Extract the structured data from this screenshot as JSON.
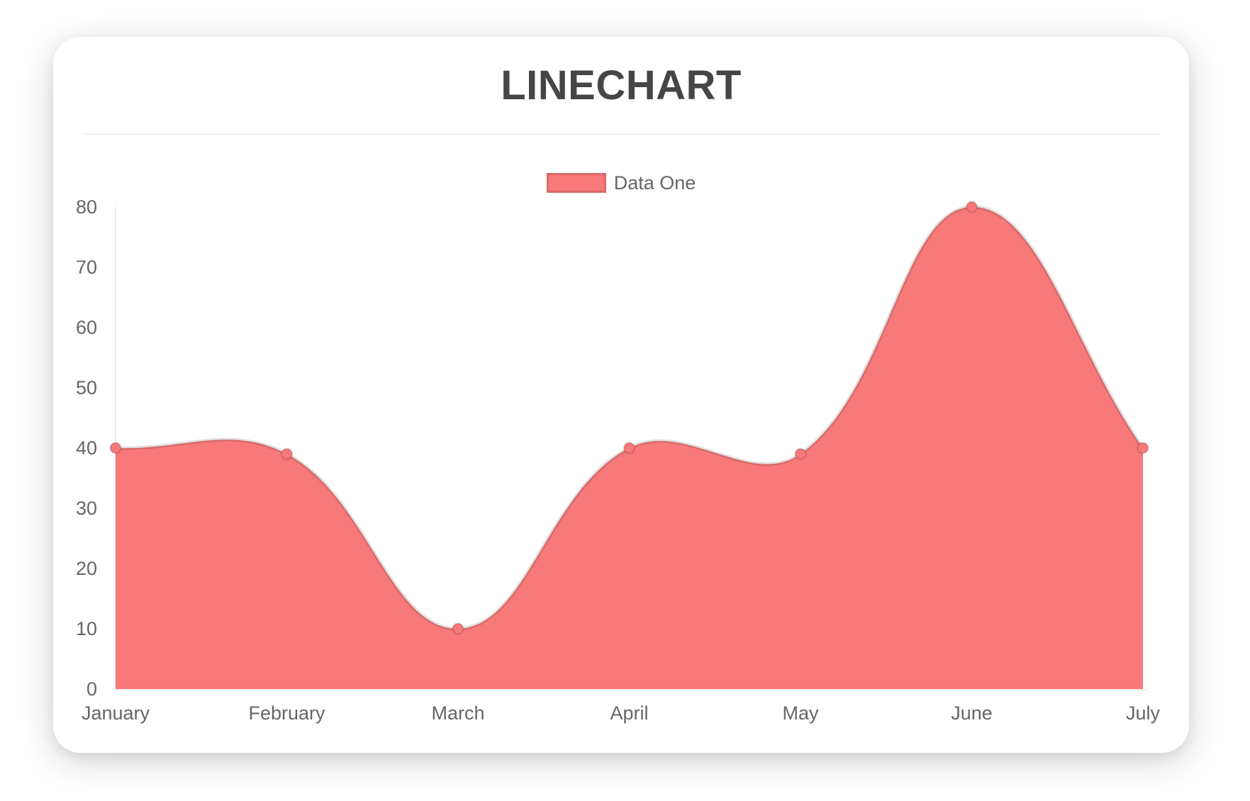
{
  "card": {
    "title": "LINECHART"
  },
  "legend": {
    "label": "Data One",
    "swatch_color": "#f87979"
  },
  "chart_data": {
    "type": "area",
    "title": "LINECHART",
    "categories": [
      "January",
      "February",
      "March",
      "April",
      "May",
      "June",
      "July"
    ],
    "series": [
      {
        "name": "Data One",
        "values": [
          40,
          39,
          10,
          40,
          39,
          80,
          40
        ]
      }
    ],
    "xlabel": "",
    "ylabel": "",
    "ylim": [
      0,
      80
    ],
    "yticks": [
      0,
      10,
      20,
      30,
      40,
      50,
      60,
      70,
      80
    ],
    "grid": false,
    "legend_position": "top",
    "line_tension": 0.4,
    "colors": {
      "fill": "#f87979",
      "line": "rgba(0,0,0,0.12)",
      "point_fill": "#f87979",
      "point_border": "rgba(0,0,0,0.12)",
      "axis": "#eaeaea",
      "tick_text": "#666666",
      "title_text": "#464646"
    }
  }
}
